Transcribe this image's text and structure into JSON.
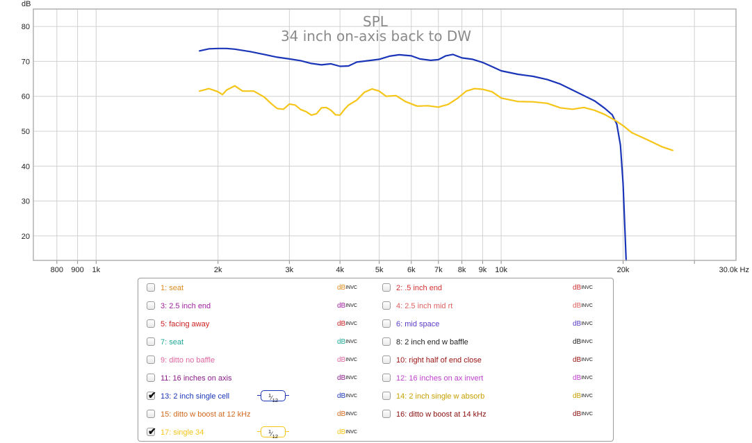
{
  "chart_data": {
    "type": "line",
    "title": "SPL",
    "subtitle": "34 inch on-axis back to DW",
    "ylabel": "dB",
    "xunit": "Hz",
    "xscale": "log",
    "xlim": [
      700,
      38000
    ],
    "ylim": [
      13,
      85
    ],
    "grid": true,
    "xticks": [
      800,
      900,
      1000,
      2000,
      3000,
      4000,
      5000,
      6000,
      7000,
      8000,
      9000,
      10000,
      20000,
      30000
    ],
    "xtick_labels": [
      "800",
      "900",
      "1k",
      "2k",
      "3k",
      "4k",
      "5k",
      "6k",
      "7k",
      "8k",
      "9k",
      "10k",
      "20k",
      "30.0k Hz"
    ],
    "yticks": [
      20,
      30,
      40,
      50,
      60,
      70,
      80
    ],
    "ytick_labels": [
      "20",
      "30",
      "40",
      "50",
      "60",
      "70",
      "80"
    ],
    "series": [
      {
        "name": "13: 2 inch single cell",
        "color": "#1a35b8",
        "points": [
          [
            1800,
            73.0
          ],
          [
            1900,
            73.6
          ],
          [
            2000,
            73.7
          ],
          [
            2100,
            73.7
          ],
          [
            2200,
            73.5
          ],
          [
            2400,
            72.8
          ],
          [
            2600,
            72.0
          ],
          [
            2800,
            71.2
          ],
          [
            3000,
            70.7
          ],
          [
            3200,
            70.2
          ],
          [
            3400,
            69.4
          ],
          [
            3600,
            69.0
          ],
          [
            3800,
            69.3
          ],
          [
            4000,
            68.6
          ],
          [
            4200,
            68.7
          ],
          [
            4400,
            69.8
          ],
          [
            4700,
            70.2
          ],
          [
            5000,
            70.6
          ],
          [
            5300,
            71.5
          ],
          [
            5600,
            71.9
          ],
          [
            6000,
            71.6
          ],
          [
            6300,
            70.7
          ],
          [
            6700,
            70.3
          ],
          [
            7000,
            70.5
          ],
          [
            7300,
            71.6
          ],
          [
            7600,
            72.0
          ],
          [
            8000,
            71.0
          ],
          [
            8500,
            70.6
          ],
          [
            9000,
            69.7
          ],
          [
            9500,
            68.5
          ],
          [
            10000,
            67.3
          ],
          [
            11000,
            66.3
          ],
          [
            12000,
            65.7
          ],
          [
            13000,
            64.8
          ],
          [
            14000,
            63.5
          ],
          [
            15000,
            61.8
          ],
          [
            16000,
            60.2
          ],
          [
            17000,
            58.7
          ],
          [
            18000,
            56.6
          ],
          [
            18800,
            54.7
          ],
          [
            19300,
            52.0
          ],
          [
            19700,
            46.0
          ],
          [
            20000,
            35.0
          ],
          [
            20200,
            22.0
          ],
          [
            20350,
            13.0
          ]
        ]
      },
      {
        "name": "17: single 34",
        "color": "#f5c518",
        "points": [
          [
            1800,
            61.5
          ],
          [
            1900,
            62.2
          ],
          [
            2000,
            61.3
          ],
          [
            2050,
            60.5
          ],
          [
            2100,
            61.8
          ],
          [
            2200,
            63.0
          ],
          [
            2300,
            61.5
          ],
          [
            2450,
            61.5
          ],
          [
            2600,
            59.8
          ],
          [
            2700,
            58.0
          ],
          [
            2800,
            56.5
          ],
          [
            2900,
            56.3
          ],
          [
            3000,
            57.8
          ],
          [
            3100,
            57.5
          ],
          [
            3200,
            56.2
          ],
          [
            3300,
            55.6
          ],
          [
            3400,
            54.6
          ],
          [
            3500,
            55.0
          ],
          [
            3600,
            56.7
          ],
          [
            3700,
            56.8
          ],
          [
            3800,
            56.0
          ],
          [
            3900,
            54.7
          ],
          [
            4000,
            54.6
          ],
          [
            4100,
            56.2
          ],
          [
            4200,
            57.5
          ],
          [
            4400,
            58.9
          ],
          [
            4600,
            61.2
          ],
          [
            4800,
            62.1
          ],
          [
            5000,
            61.5
          ],
          [
            5200,
            60.0
          ],
          [
            5500,
            60.2
          ],
          [
            5800,
            58.5
          ],
          [
            6200,
            57.2
          ],
          [
            6600,
            57.3
          ],
          [
            7000,
            56.9
          ],
          [
            7400,
            57.7
          ],
          [
            7800,
            59.4
          ],
          [
            8200,
            61.5
          ],
          [
            8600,
            62.2
          ],
          [
            9000,
            62.0
          ],
          [
            9500,
            61.3
          ],
          [
            10000,
            59.5
          ],
          [
            11000,
            58.5
          ],
          [
            12000,
            58.4
          ],
          [
            13000,
            58.0
          ],
          [
            14000,
            56.7
          ],
          [
            15000,
            56.3
          ],
          [
            16000,
            56.8
          ],
          [
            17000,
            56.0
          ],
          [
            18000,
            54.8
          ],
          [
            19000,
            53.3
          ],
          [
            20000,
            51.6
          ],
          [
            21000,
            49.6
          ],
          [
            23000,
            47.5
          ],
          [
            25000,
            45.5
          ],
          [
            26500,
            44.5
          ]
        ]
      }
    ]
  },
  "legend": {
    "left": [
      {
        "label": "1: seat",
        "color": "#e08a1e",
        "checked": false,
        "db": "dB",
        "invc": "INVC",
        "smoothing": ""
      },
      {
        "label": "3: 2.5 inch end",
        "color": "#a020a0",
        "checked": false,
        "db": "dB",
        "invc": "INVC",
        "smoothing": ""
      },
      {
        "label": "5: facing away",
        "color": "#cc2020",
        "checked": false,
        "db": "dB",
        "invc": "INVC",
        "smoothing": ""
      },
      {
        "label": "7: seat",
        "color": "#1ea896",
        "checked": false,
        "db": "dB",
        "invc": "INVC",
        "smoothing": ""
      },
      {
        "label": "9: ditto no baffle",
        "color": "#e066a0",
        "checked": false,
        "db": "dB",
        "invc": "INVC",
        "smoothing": ""
      },
      {
        "label": "11: 16 inches on axis",
        "color": "#8a1a8a",
        "checked": false,
        "db": "dB",
        "invc": "INVC",
        "smoothing": ""
      },
      {
        "label": "13: 2 inch single cell",
        "color": "#1a35b8",
        "checked": true,
        "db": "dB",
        "invc": "INVC",
        "smoothing": "1/12"
      },
      {
        "label": "15: ditto w boost at 12 kHz",
        "color": "#d2691e",
        "checked": false,
        "db": "dB",
        "invc": "INVC",
        "smoothing": ""
      },
      {
        "label": "17: single 34",
        "color": "#f5c518",
        "checked": true,
        "db": "dB",
        "invc": "INVC",
        "smoothing": "1/12"
      }
    ],
    "right": [
      {
        "label": "2: .5 inch end",
        "color": "#d43030",
        "checked": false,
        "db": "dB",
        "invc": "INVC"
      },
      {
        "label": "4: 2.5 inch mid rt",
        "color": "#e06060",
        "checked": false,
        "db": "dB",
        "invc": "INVC"
      },
      {
        "label": "6: mid space",
        "color": "#5a3ac8",
        "checked": false,
        "db": "dB",
        "invc": "INVC"
      },
      {
        "label": "8: 2 inch end  w baffle",
        "color": "#222222",
        "checked": false,
        "db": "dB",
        "invc": "INVC"
      },
      {
        "label": "10: right half of end close",
        "color": "#9a1010",
        "checked": false,
        "db": "dB",
        "invc": "INVC"
      },
      {
        "label": "12: 16 inches on ax invert",
        "color": "#c040d0",
        "checked": false,
        "db": "dB",
        "invc": "INVC"
      },
      {
        "label": "14: 2 inch single w absorb",
        "color": "#c8a000",
        "checked": false,
        "db": "dB",
        "invc": "INVC"
      },
      {
        "label": "16: ditto w boost at 14 kHz",
        "color": "#8a1010",
        "checked": false,
        "db": "dB",
        "invc": "INVC"
      }
    ]
  }
}
